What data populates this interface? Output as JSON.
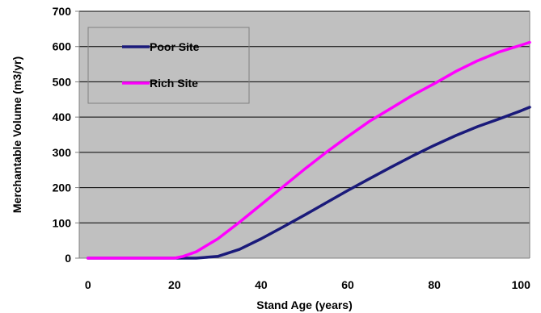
{
  "chart_data": {
    "type": "line",
    "title": "",
    "xlabel": "Stand Age (years)",
    "ylabel": "Merchantable Volume (m3/yr)",
    "xlim": [
      -2,
      102
    ],
    "ylim": [
      0,
      700
    ],
    "xticks": [
      0,
      20,
      40,
      60,
      80,
      100
    ],
    "yticks": [
      0,
      100,
      200,
      300,
      400,
      500,
      600,
      700
    ],
    "grid": "horizontal",
    "plot_background": "#c0c0c0",
    "legend_position": "top-left",
    "series": [
      {
        "name": "Poor Site",
        "color": "#1a1a7a",
        "x": [
          0,
          5,
          10,
          15,
          20,
          25,
          30,
          35,
          40,
          45,
          50,
          55,
          60,
          65,
          70,
          75,
          80,
          85,
          90,
          95,
          100,
          102
        ],
        "y": [
          0,
          0,
          0,
          0,
          0,
          0,
          5,
          25,
          55,
          88,
          122,
          157,
          192,
          225,
          258,
          290,
          320,
          348,
          373,
          395,
          418,
          428
        ]
      },
      {
        "name": "Rich Site",
        "color": "#ff00ff",
        "x": [
          0,
          5,
          10,
          15,
          20,
          22,
          25,
          30,
          35,
          40,
          45,
          50,
          55,
          60,
          65,
          70,
          75,
          80,
          85,
          90,
          95,
          100,
          102
        ],
        "y": [
          0,
          0,
          0,
          0,
          0,
          5,
          18,
          55,
          102,
          152,
          202,
          252,
          300,
          345,
          388,
          425,
          462,
          495,
          530,
          560,
          585,
          604,
          612
        ]
      }
    ]
  }
}
